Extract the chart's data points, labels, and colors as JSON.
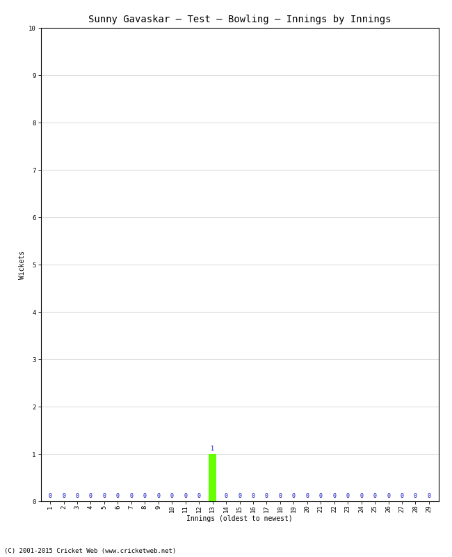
{
  "title": "Sunny Gavaskar – Test – Bowling – Innings by Innings",
  "xlabel": "Innings (oldest to newest)",
  "ylabel": "Wickets",
  "num_innings": 29,
  "wickets": [
    0,
    0,
    0,
    0,
    0,
    0,
    0,
    0,
    0,
    0,
    0,
    0,
    1,
    0,
    0,
    0,
    0,
    0,
    0,
    0,
    0,
    0,
    0,
    0,
    0,
    0,
    0,
    0,
    0
  ],
  "bar_color": "#66ff00",
  "data_label_color": "#0000bb",
  "background_color": "#ffffff",
  "grid_color": "#dddddd",
  "ylim": [
    0,
    10
  ],
  "yticks": [
    0,
    1,
    2,
    3,
    4,
    5,
    6,
    7,
    8,
    9,
    10
  ],
  "footer": "(C) 2001-2015 Cricket Web (www.cricketweb.net)",
  "title_fontsize": 10,
  "axis_label_fontsize": 7,
  "tick_fontsize": 6.5,
  "data_label_fontsize": 6,
  "footer_fontsize": 6.5
}
